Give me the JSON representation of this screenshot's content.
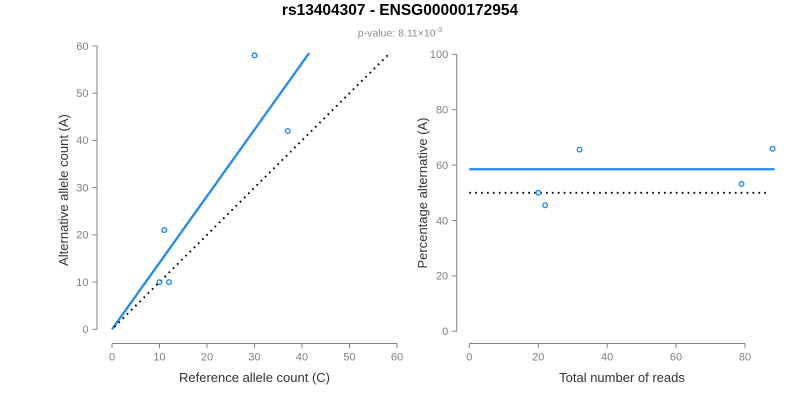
{
  "header": {
    "title": "rs13404307 - ENSG00000172954",
    "subtitle_prefix": "p-value: ",
    "subtitle_value": "8.11×10",
    "subtitle_exponent": "-3"
  },
  "colors": {
    "accent_blue": "#1F8CEE",
    "line_black": "#000000",
    "axis_gray": "#808080",
    "tick_label_gray": "#7f7f7f",
    "axis_title_dark": "#333333",
    "subtitle_gray": "#8c8c8c",
    "background": "#ffffff"
  },
  "chart_data": [
    {
      "name": "allele-count-scatter",
      "type": "scatter",
      "xlabel": "Reference allele count (C)",
      "ylabel": "Alternative allele count (A)",
      "xlim": [
        0,
        60
      ],
      "ylim": [
        0,
        60
      ],
      "xticks": [
        0,
        10,
        20,
        30,
        40,
        50,
        60
      ],
      "yticks": [
        0,
        10,
        20,
        30,
        40,
        50,
        60
      ],
      "grid": false,
      "legend": null,
      "points": [
        [
          10,
          10
        ],
        [
          12,
          10
        ],
        [
          11,
          21
        ],
        [
          37,
          42
        ],
        [
          30,
          58
        ]
      ],
      "lines": [
        {
          "name": "regression-line",
          "style": "solid",
          "color_key": "accent_blue",
          "slope": 1.41,
          "intercept": 0,
          "x": [
            0,
            41.5
          ],
          "y": [
            0,
            58.5
          ]
        },
        {
          "name": "identity-line",
          "style": "dotted",
          "color_key": "line_black",
          "slope": 1,
          "intercept": 0,
          "x": [
            0.5,
            58.2
          ],
          "y": [
            0.5,
            58.2
          ]
        }
      ]
    },
    {
      "name": "percentage-vs-coverage-scatter",
      "type": "scatter",
      "xlabel": "Total number of reads",
      "ylabel": "Percentage alternative (A)",
      "xlim": [
        0,
        88
      ],
      "ylim": [
        0,
        100
      ],
      "xticks": [
        0,
        20,
        40,
        60,
        80
      ],
      "yticks": [
        0,
        20,
        40,
        60,
        80,
        100
      ],
      "grid": false,
      "legend": null,
      "points": [
        [
          20,
          50
        ],
        [
          22,
          45.5
        ],
        [
          32,
          65.6
        ],
        [
          79,
          53.2
        ],
        [
          88,
          65.9
        ]
      ],
      "lines": [
        {
          "name": "mean-percentage-line",
          "style": "solid",
          "color_key": "accent_blue",
          "value": 58.5,
          "x": [
            0,
            88.6
          ],
          "y": [
            58.5,
            58.5
          ]
        },
        {
          "name": "expected-50-percent-line",
          "style": "dotted",
          "color_key": "line_black",
          "value": 50,
          "x": [
            0,
            87
          ],
          "y": [
            50,
            50
          ]
        }
      ]
    }
  ]
}
